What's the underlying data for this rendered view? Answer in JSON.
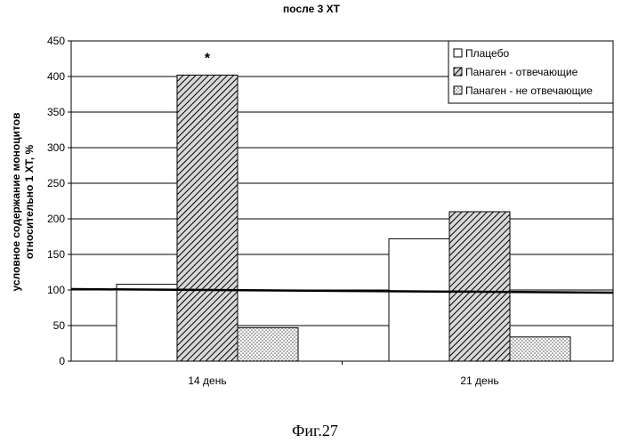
{
  "chart_data": {
    "type": "bar",
    "title": "после 3 ХТ",
    "ylabel": [
      "условное содержание моноцитов",
      "относительно 1 ХТ, %"
    ],
    "xlabel": "",
    "ylim": [
      0,
      450
    ],
    "yticks": [
      "0",
      "50",
      "100",
      "150",
      "200",
      "250",
      "300",
      "350",
      "400",
      "450"
    ],
    "categories": [
      "14 день",
      "21 день"
    ],
    "series": [
      {
        "name": "Плацебо",
        "values": [
          108,
          172
        ],
        "pattern": "solid-white"
      },
      {
        "name": "Панаген - отвечающие",
        "values": [
          402,
          210
        ],
        "pattern": "hatch"
      },
      {
        "name": "Панаген - не отвечающие",
        "values": [
          47,
          34
        ],
        "pattern": "dots"
      }
    ],
    "reference_line": 100,
    "annotations": [
      {
        "text": "*",
        "category": 0,
        "series": 1
      }
    ],
    "grid": true,
    "legend_position": "top-right"
  },
  "figure_caption": "Фиг.27"
}
